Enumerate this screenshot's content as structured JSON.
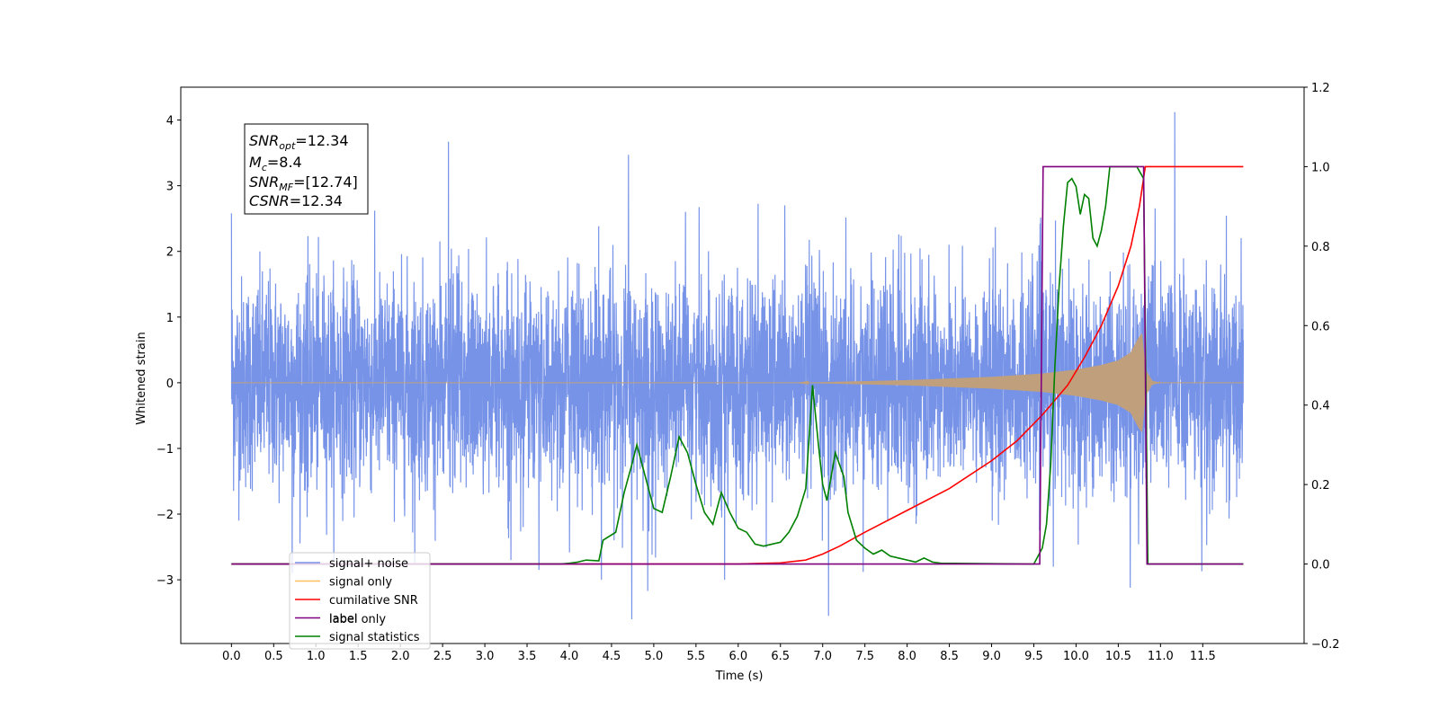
{
  "chart_data": {
    "type": "line",
    "xlabel": "Time (s)",
    "ylabel": "Whitened strain",
    "xlim": [
      -0.6,
      12.7
    ],
    "ylim_left": [
      -3.97,
      4.5
    ],
    "ylim_right": [
      -0.2,
      1.2
    ],
    "x_ticks": [
      0.0,
      0.5,
      1.0,
      1.5,
      2.0,
      2.5,
      3.0,
      3.5,
      4.0,
      4.5,
      5.0,
      5.5,
      6.0,
      6.5,
      7.0,
      7.5,
      8.0,
      8.5,
      9.0,
      9.5,
      10.0,
      10.5,
      11.0,
      11.5
    ],
    "x_tick_labels": [
      "0.0",
      "0.5",
      "1.0",
      "1.5",
      "2.0",
      "2.5",
      "3.0",
      "3.5",
      "4.0",
      "4.5",
      "5.0",
      "5.5",
      "6.0",
      "6.5",
      "7.0",
      "7.5",
      "8.0",
      "8.5",
      "9.0",
      "9.5",
      "10.0",
      "10.5",
      "11.0",
      "11.5"
    ],
    "y_left_ticks": [
      -3,
      -2,
      -1,
      0,
      1,
      2,
      3,
      4
    ],
    "y_left_tick_labels": [
      "−3",
      "−2",
      "−1",
      "0",
      "1",
      "2",
      "3",
      "4"
    ],
    "y_right_ticks": [
      -0.2,
      0.0,
      0.2,
      0.4,
      0.6,
      0.8,
      1.0,
      1.2
    ],
    "y_right_tick_labels": [
      "−0.2",
      "0.0",
      "0.2",
      "0.4",
      "0.6",
      "0.8",
      "1.0",
      "1.2"
    ],
    "info_box": {
      "snr_opt_base": "SNR",
      "snr_opt_sub": "opt",
      "snr_opt_value": "=12.34",
      "mc_base": "M",
      "mc_sub": "c",
      "mc_value": "=8.4",
      "snr_mf_base": "SNR",
      "snr_mf_sub": "MF",
      "snr_mf_value": "=[12.74]",
      "csnr_base": "CSNR",
      "csnr_value": "=12.34"
    },
    "legend_placement": "lower-left",
    "legend": [
      {
        "name": "signal+ noise",
        "color": "#7793e8"
      },
      {
        "name": "signal only",
        "color": "#ffbf60"
      },
      {
        "name": "cumilative SNR",
        "color": "#ff0000"
      },
      {
        "name": "label",
        "color": "#800080"
      },
      {
        "name": "signal statistics",
        "color": "#008000"
      }
    ],
    "hidden_legend_text": "label only",
    "noise": {
      "color": "#7793e8",
      "x_start": 0.0,
      "x_end": 11.98,
      "signal_start": 6.7,
      "merger": 10.78,
      "ringdown_end": 10.95,
      "envelope_max": 0.75,
      "std": 0.8,
      "spikes": [
        {
          "x": 0.0,
          "y": 2.58
        },
        {
          "x": 0.72,
          "y": -2.9
        },
        {
          "x": 2.57,
          "y": 3.67
        },
        {
          "x": 3.64,
          "y": -2.85
        },
        {
          "x": 4.38,
          "y": -3.0
        },
        {
          "x": 4.7,
          "y": 3.47
        },
        {
          "x": 4.74,
          "y": -3.6
        },
        {
          "x": 4.93,
          "y": -3.17
        },
        {
          "x": 5.84,
          "y": -3.0
        },
        {
          "x": 6.55,
          "y": 2.7
        },
        {
          "x": 7.07,
          "y": -3.55
        },
        {
          "x": 7.48,
          "y": -2.88
        },
        {
          "x": 11.17,
          "y": 4.12
        },
        {
          "x": 11.49,
          "y": -2.87
        },
        {
          "x": 2.17,
          "y": -2.75
        },
        {
          "x": 9.73,
          "y": -2.8
        }
      ]
    },
    "signal_only": {
      "color": "#c0a07c",
      "envelope": [
        [
          6.7,
          0.0
        ],
        [
          8.0,
          0.04
        ],
        [
          9.0,
          0.09
        ],
        [
          9.6,
          0.14
        ],
        [
          10.0,
          0.2
        ],
        [
          10.3,
          0.27
        ],
        [
          10.5,
          0.34
        ],
        [
          10.65,
          0.46
        ],
        [
          10.74,
          0.68
        ],
        [
          10.78,
          0.75
        ],
        [
          10.82,
          0.2
        ],
        [
          10.9,
          0.03
        ],
        [
          11.0,
          0.0
        ]
      ]
    },
    "cumulative_snr": {
      "color": "#ff0000",
      "points": [
        [
          0.0,
          0.0
        ],
        [
          6.0,
          0.0
        ],
        [
          6.5,
          0.003
        ],
        [
          6.8,
          0.01
        ],
        [
          7.0,
          0.025
        ],
        [
          7.2,
          0.045
        ],
        [
          7.5,
          0.08
        ],
        [
          8.0,
          0.135
        ],
        [
          8.5,
          0.19
        ],
        [
          9.0,
          0.26
        ],
        [
          9.3,
          0.31
        ],
        [
          9.6,
          0.375
        ],
        [
          9.9,
          0.45
        ],
        [
          10.1,
          0.52
        ],
        [
          10.3,
          0.6
        ],
        [
          10.5,
          0.7
        ],
        [
          10.65,
          0.8
        ],
        [
          10.75,
          0.9
        ],
        [
          10.82,
          1.0
        ],
        [
          11.98,
          1.0
        ]
      ]
    },
    "label": {
      "color": "#800080",
      "points": [
        [
          0.0,
          0.0
        ],
        [
          9.57,
          0.0
        ],
        [
          9.61,
          1.0
        ],
        [
          10.8,
          1.0
        ],
        [
          10.84,
          0.0
        ],
        [
          11.98,
          0.0
        ]
      ]
    },
    "signal_statistics": {
      "color": "#008000",
      "points": [
        [
          0.0,
          0.0
        ],
        [
          3.9,
          0.0
        ],
        [
          4.0,
          0.002
        ],
        [
          4.1,
          0.005
        ],
        [
          4.2,
          0.01
        ],
        [
          4.35,
          0.008
        ],
        [
          4.4,
          0.06
        ],
        [
          4.55,
          0.08
        ],
        [
          4.65,
          0.18
        ],
        [
          4.74,
          0.25
        ],
        [
          4.8,
          0.3
        ],
        [
          4.9,
          0.22
        ],
        [
          5.0,
          0.14
        ],
        [
          5.1,
          0.13
        ],
        [
          5.2,
          0.22
        ],
        [
          5.3,
          0.32
        ],
        [
          5.4,
          0.28
        ],
        [
          5.5,
          0.2
        ],
        [
          5.6,
          0.13
        ],
        [
          5.7,
          0.1
        ],
        [
          5.8,
          0.18
        ],
        [
          5.9,
          0.13
        ],
        [
          6.0,
          0.09
        ],
        [
          6.1,
          0.08
        ],
        [
          6.2,
          0.05
        ],
        [
          6.3,
          0.045
        ],
        [
          6.4,
          0.05
        ],
        [
          6.5,
          0.055
        ],
        [
          6.6,
          0.08
        ],
        [
          6.7,
          0.12
        ],
        [
          6.8,
          0.19
        ],
        [
          6.88,
          0.45
        ],
        [
          6.95,
          0.3
        ],
        [
          7.0,
          0.2
        ],
        [
          7.05,
          0.16
        ],
        [
          7.1,
          0.22
        ],
        [
          7.15,
          0.28
        ],
        [
          7.25,
          0.22
        ],
        [
          7.3,
          0.13
        ],
        [
          7.4,
          0.06
        ],
        [
          7.5,
          0.04
        ],
        [
          7.6,
          0.025
        ],
        [
          7.7,
          0.035
        ],
        [
          7.8,
          0.02
        ],
        [
          7.9,
          0.015
        ],
        [
          8.0,
          0.01
        ],
        [
          8.1,
          0.005
        ],
        [
          8.2,
          0.015
        ],
        [
          8.3,
          0.005
        ],
        [
          8.4,
          0.002
        ],
        [
          9.5,
          0.0
        ],
        [
          9.6,
          0.04
        ],
        [
          9.65,
          0.1
        ],
        [
          9.7,
          0.25
        ],
        [
          9.75,
          0.5
        ],
        [
          9.8,
          0.7
        ],
        [
          9.85,
          0.85
        ],
        [
          9.9,
          0.96
        ],
        [
          9.95,
          0.97
        ],
        [
          10.0,
          0.95
        ],
        [
          10.05,
          0.88
        ],
        [
          10.1,
          0.93
        ],
        [
          10.15,
          0.92
        ],
        [
          10.2,
          0.82
        ],
        [
          10.25,
          0.8
        ],
        [
          10.3,
          0.84
        ],
        [
          10.35,
          0.9
        ],
        [
          10.4,
          1.0
        ],
        [
          10.5,
          1.0
        ],
        [
          10.6,
          1.0
        ],
        [
          10.72,
          1.0
        ],
        [
          10.8,
          0.97
        ],
        [
          10.83,
          0.4
        ],
        [
          10.85,
          0.0
        ],
        [
          11.98,
          0.0
        ]
      ]
    }
  }
}
